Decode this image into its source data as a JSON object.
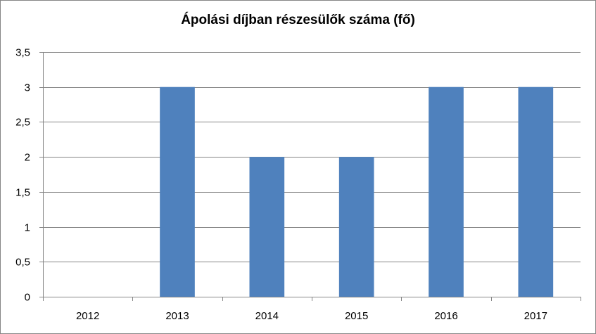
{
  "chart_data": {
    "type": "bar",
    "title": "Ápolási díjban részesülők száma (fő)",
    "categories": [
      "2012",
      "2013",
      "2014",
      "2015",
      "2016",
      "2017"
    ],
    "values": [
      0,
      3,
      2,
      2,
      3,
      3
    ],
    "ylim": [
      0,
      3.5
    ],
    "yticks": [
      "0",
      "0,5",
      "1",
      "1,5",
      "2",
      "2,5",
      "3",
      "3,5"
    ],
    "xlabel": "",
    "ylabel": "",
    "grid": true,
    "legend": "none",
    "bar_color": "#4f81bd",
    "grid_color": "#868686"
  }
}
